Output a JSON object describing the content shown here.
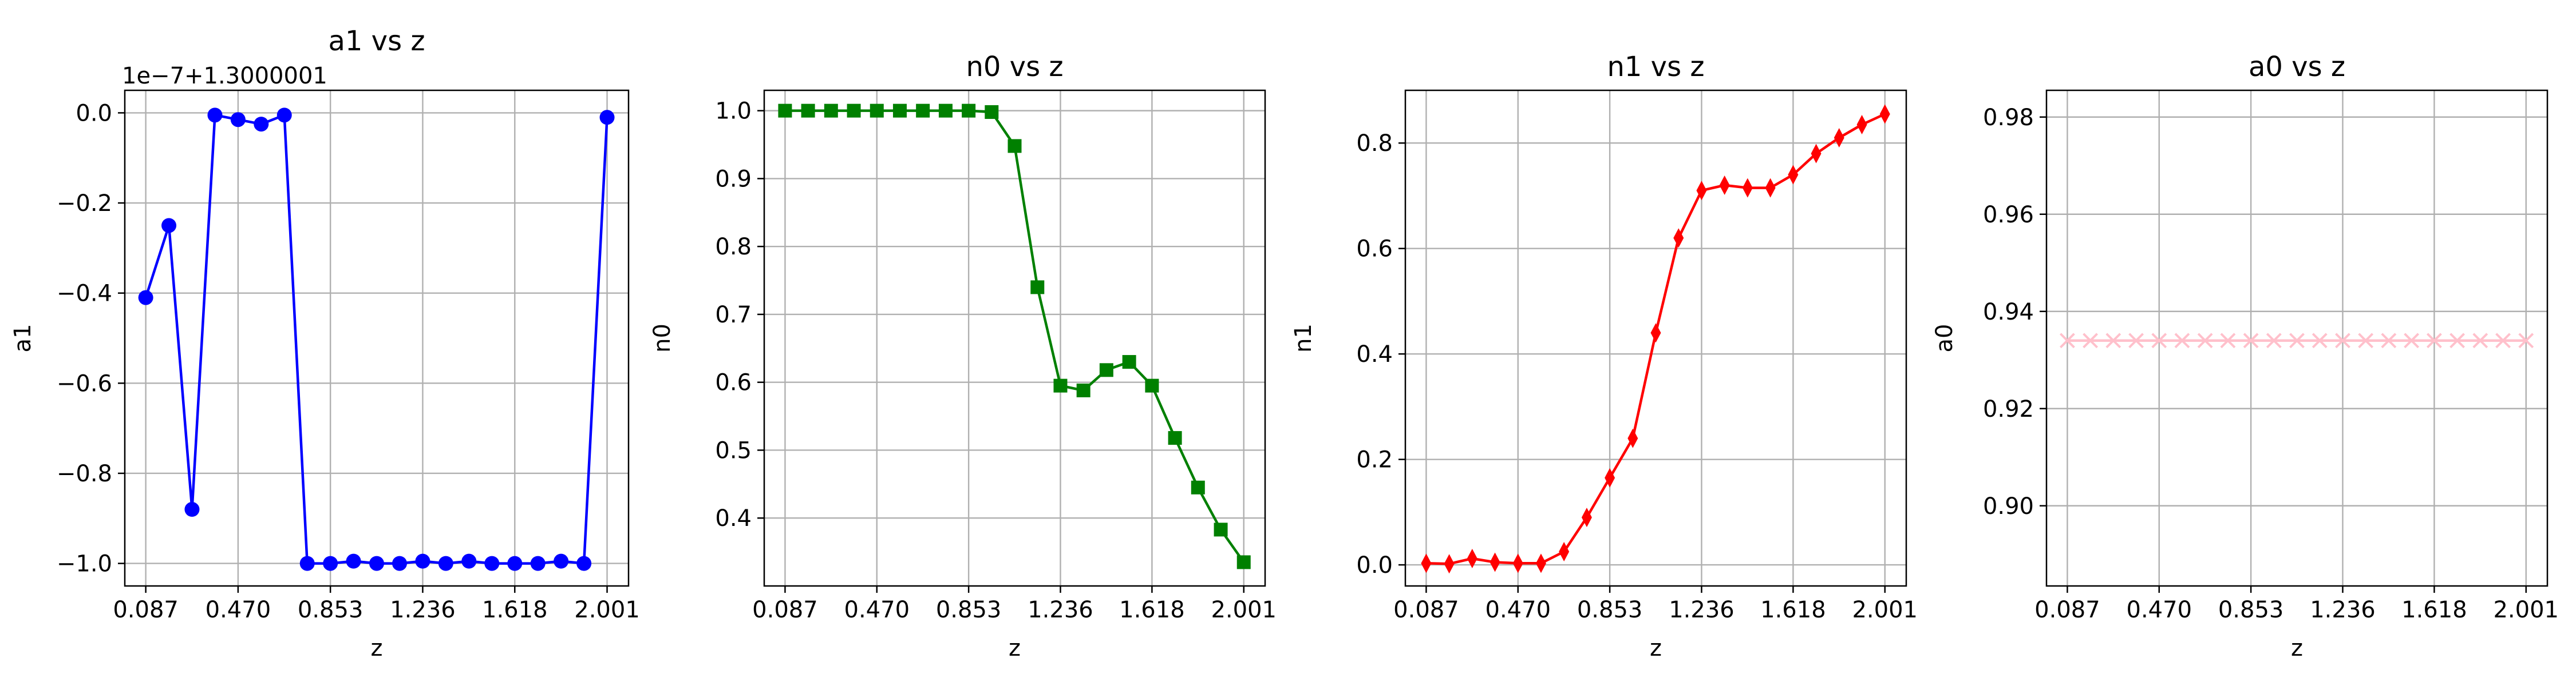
{
  "chart_data": [
    {
      "type": "line",
      "title": "a1 vs z",
      "xlabel": "z",
      "ylabel": "a1",
      "offset_text": "1e−7+1.3000001",
      "x_ticks": [
        "0.087",
        "0.470",
        "0.853",
        "1.236",
        "1.618",
        "2.001"
      ],
      "y_ticks": [
        "−1.0",
        "−0.8",
        "−0.6",
        "−0.4",
        "−0.2",
        "0.0"
      ],
      "xlim": [
        0.0,
        2.09
      ],
      "ylim": [
        -1.05,
        0.05
      ],
      "grid": true,
      "marker": "circle",
      "color": "#0000ff",
      "x": [
        0.087,
        0.183,
        0.279,
        0.374,
        0.47,
        0.566,
        0.662,
        0.757,
        0.853,
        0.949,
        1.045,
        1.14,
        1.236,
        1.332,
        1.428,
        1.523,
        1.618,
        1.714,
        1.81,
        1.905,
        2.001
      ],
      "y": [
        -0.41,
        -0.25,
        -0.88,
        -0.005,
        -0.015,
        -0.025,
        -0.005,
        -1.0,
        -1.0,
        -0.995,
        -1.0,
        -1.0,
        -0.995,
        -1.0,
        -0.995,
        -1.0,
        -1.0,
        -1.0,
        -0.995,
        -1.0,
        -0.01
      ]
    },
    {
      "type": "line",
      "title": "n0 vs z",
      "xlabel": "z",
      "ylabel": "n0",
      "x_ticks": [
        "0.087",
        "0.470",
        "0.853",
        "1.236",
        "1.618",
        "2.001"
      ],
      "y_ticks": [
        "0.4",
        "0.5",
        "0.6",
        "0.7",
        "0.8",
        "0.9",
        "1.0"
      ],
      "xlim": [
        0.0,
        2.09
      ],
      "ylim": [
        0.3,
        1.03
      ],
      "grid": true,
      "marker": "square",
      "color": "#008000",
      "x": [
        0.087,
        0.183,
        0.279,
        0.374,
        0.47,
        0.566,
        0.662,
        0.757,
        0.853,
        0.949,
        1.045,
        1.14,
        1.236,
        1.332,
        1.428,
        1.523,
        1.618,
        1.714,
        1.81,
        1.905,
        2.001
      ],
      "y": [
        1.0,
        1.0,
        1.0,
        1.0,
        1.0,
        1.0,
        1.0,
        1.0,
        1.0,
        0.998,
        0.948,
        0.74,
        0.595,
        0.588,
        0.618,
        0.63,
        0.595,
        0.518,
        0.445,
        0.383,
        0.335
      ]
    },
    {
      "type": "line",
      "title": "n1 vs z",
      "xlabel": "z",
      "ylabel": "n1",
      "x_ticks": [
        "0.087",
        "0.470",
        "0.853",
        "1.236",
        "1.618",
        "2.001"
      ],
      "y_ticks": [
        "0.0",
        "0.2",
        "0.4",
        "0.6",
        "0.8"
      ],
      "xlim": [
        0.0,
        2.09
      ],
      "ylim": [
        -0.04,
        0.9
      ],
      "grid": true,
      "marker": "thin_diamond",
      "color": "#ff0000",
      "x": [
        0.087,
        0.183,
        0.279,
        0.374,
        0.47,
        0.566,
        0.662,
        0.757,
        0.853,
        0.949,
        1.045,
        1.14,
        1.236,
        1.332,
        1.428,
        1.523,
        1.618,
        1.714,
        1.81,
        1.905,
        2.001
      ],
      "y": [
        0.003,
        0.002,
        0.012,
        0.005,
        0.003,
        0.003,
        0.025,
        0.09,
        0.165,
        0.24,
        0.44,
        0.62,
        0.71,
        0.72,
        0.715,
        0.715,
        0.74,
        0.78,
        0.81,
        0.835,
        0.855
      ]
    },
    {
      "type": "line",
      "title": "a0 vs z",
      "xlabel": "z",
      "ylabel": "a0",
      "x_ticks": [
        "0.087",
        "0.470",
        "0.853",
        "1.236",
        "1.618",
        "2.001"
      ],
      "y_ticks": [
        "0.90",
        "0.92",
        "0.94",
        "0.96",
        "0.98"
      ],
      "xlim": [
        0.0,
        2.09
      ],
      "ylim": [
        0.8835,
        0.9855
      ],
      "grid": true,
      "marker": "x",
      "color": "#ffc0cb",
      "x": [
        0.087,
        0.183,
        0.279,
        0.374,
        0.47,
        0.566,
        0.662,
        0.757,
        0.853,
        0.949,
        1.045,
        1.14,
        1.236,
        1.332,
        1.428,
        1.523,
        1.618,
        1.714,
        1.81,
        1.905,
        2.001
      ],
      "y": [
        0.934,
        0.934,
        0.934,
        0.934,
        0.934,
        0.934,
        0.934,
        0.934,
        0.934,
        0.934,
        0.934,
        0.934,
        0.934,
        0.934,
        0.934,
        0.934,
        0.934,
        0.934,
        0.934,
        0.934,
        0.934
      ]
    }
  ]
}
